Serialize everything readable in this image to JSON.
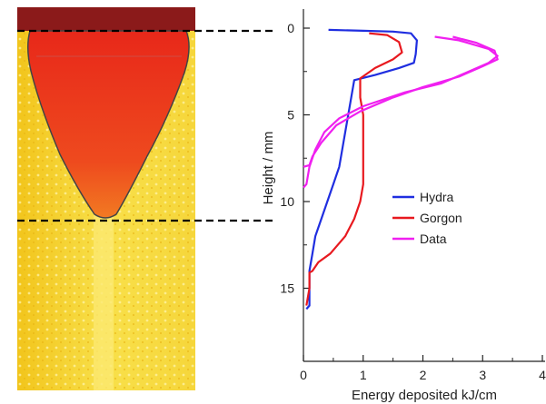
{
  "chart_data": {
    "type": "line",
    "xlabel": "Energy deposited kJ/cm",
    "ylabel": "Height / mm",
    "xlim": [
      0,
      4
    ],
    "ylim": [
      0,
      17
    ],
    "y_inverted": true,
    "x_ticks": [
      "0",
      "1",
      "2",
      "3",
      "4"
    ],
    "y_ticks": [
      "0",
      "5",
      "10",
      "15"
    ],
    "legend_position": "center-right",
    "grid": false,
    "series": [
      {
        "name": "Hydra",
        "color": "#1f2ee0",
        "points": [
          [
            0.42,
            0.1
          ],
          [
            1.0,
            0.15
          ],
          [
            1.5,
            0.2
          ],
          [
            1.8,
            0.3
          ],
          [
            1.9,
            0.7
          ],
          [
            1.88,
            1.5
          ],
          [
            1.85,
            2.0
          ],
          [
            1.6,
            2.3
          ],
          [
            1.2,
            2.7
          ],
          [
            0.85,
            3.0
          ],
          [
            0.8,
            4.0
          ],
          [
            0.75,
            5.0
          ],
          [
            0.7,
            6.0
          ],
          [
            0.65,
            7.0
          ],
          [
            0.6,
            8.0
          ],
          [
            0.5,
            9.0
          ],
          [
            0.4,
            10.0
          ],
          [
            0.3,
            11.0
          ],
          [
            0.2,
            12.0
          ],
          [
            0.15,
            13.0
          ],
          [
            0.1,
            14.0
          ],
          [
            0.1,
            15.0
          ],
          [
            0.1,
            16.0
          ],
          [
            0.05,
            16.2
          ]
        ]
      },
      {
        "name": "Gorgon",
        "color": "#e8191f",
        "points": [
          [
            1.1,
            0.3
          ],
          [
            1.4,
            0.4
          ],
          [
            1.6,
            0.8
          ],
          [
            1.65,
            1.4
          ],
          [
            1.5,
            1.8
          ],
          [
            1.2,
            2.3
          ],
          [
            0.95,
            2.9
          ],
          [
            0.95,
            4.0
          ],
          [
            1.0,
            5.0
          ],
          [
            1.0,
            6.0
          ],
          [
            1.0,
            7.0
          ],
          [
            1.0,
            8.0
          ],
          [
            1.0,
            9.0
          ],
          [
            0.95,
            10.0
          ],
          [
            0.85,
            11.0
          ],
          [
            0.7,
            12.0
          ],
          [
            0.45,
            13.0
          ],
          [
            0.25,
            13.5
          ],
          [
            0.15,
            14.0
          ],
          [
            0.1,
            14.1
          ],
          [
            0.1,
            15.0
          ],
          [
            0.05,
            16.0
          ]
        ]
      },
      {
        "name": "Data",
        "color": "#f020f0",
        "points": [
          [
            2.2,
            0.5
          ],
          [
            2.6,
            0.7
          ],
          [
            3.1,
            1.2
          ],
          [
            3.25,
            1.6
          ],
          [
            3.1,
            2.0
          ],
          [
            2.7,
            2.6
          ],
          [
            2.3,
            3.2
          ],
          [
            1.7,
            3.7
          ],
          [
            1.0,
            4.5
          ],
          [
            0.6,
            5.2
          ],
          [
            0.35,
            6.0
          ],
          [
            0.2,
            7.0
          ],
          [
            0.1,
            8.0
          ],
          [
            0.05,
            9.0
          ],
          [
            0.0,
            9.2
          ]
        ]
      },
      {
        "name": "",
        "color": "#f020f0",
        "points": [
          [
            2.5,
            0.5
          ],
          [
            2.9,
            0.85
          ],
          [
            3.2,
            1.3
          ],
          [
            3.25,
            1.8
          ],
          [
            3.0,
            2.2
          ],
          [
            2.6,
            2.8
          ],
          [
            2.0,
            3.4
          ],
          [
            1.5,
            4.0
          ],
          [
            0.95,
            4.8
          ],
          [
            0.55,
            5.6
          ],
          [
            0.3,
            6.6
          ],
          [
            0.15,
            7.4
          ],
          [
            0.1,
            7.9
          ],
          [
            0.0,
            8.0
          ]
        ]
      }
    ]
  },
  "colors": {
    "image_top_band": "#8b1a1a",
    "image_plume": "#e8301a",
    "image_background": "#f5d020",
    "plume_outline": "#444444",
    "dashed_marker": "#000000"
  }
}
